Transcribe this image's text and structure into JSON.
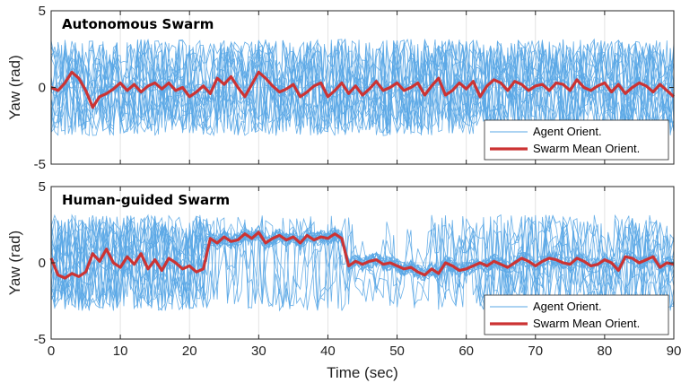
{
  "chart_data": [
    {
      "type": "line",
      "title": "Autonomous Swarm",
      "xlabel": "",
      "ylabel": "Yaw (rad)",
      "xlim": [
        0,
        90
      ],
      "ylim": [
        -5,
        5
      ],
      "xticks": [
        0,
        10,
        20,
        30,
        40,
        50,
        60,
        70,
        80,
        90
      ],
      "yticks": [
        -5,
        0,
        5
      ],
      "grid": true,
      "legend_position": "bottom-right",
      "agent_count": 20,
      "agent_range": [
        -3.14,
        3.14
      ],
      "agent_color": "#5aa7e6",
      "mean_color": "#cc3333",
      "series": [
        {
          "name": "Agent Orient.",
          "description": "individual agent yaw trajectories wrapping across ±π throughout"
        },
        {
          "name": "Swarm Mean Orient.",
          "x": [
            0,
            1,
            2,
            3,
            4,
            5,
            6,
            7,
            8,
            9,
            10,
            11,
            12,
            13,
            14,
            15,
            16,
            17,
            18,
            19,
            20,
            21,
            22,
            23,
            24,
            25,
            26,
            27,
            28,
            29,
            30,
            31,
            32,
            33,
            34,
            35,
            36,
            37,
            38,
            39,
            40,
            41,
            42,
            43,
            44,
            45,
            46,
            47,
            48,
            49,
            50,
            51,
            52,
            53,
            54,
            55,
            56,
            57,
            58,
            59,
            60,
            61,
            62,
            63,
            64,
            65,
            66,
            67,
            68,
            69,
            70,
            71,
            72,
            73,
            74,
            75,
            76,
            77,
            78,
            79,
            80,
            81,
            82,
            83,
            84,
            85,
            86,
            87,
            88,
            89,
            90
          ],
          "y": [
            0,
            -0.2,
            0.3,
            1.0,
            0.6,
            -0.2,
            -1.3,
            -0.6,
            -0.4,
            -0.1,
            0.3,
            -0.2,
            0.2,
            -0.3,
            0.1,
            0.3,
            -0.1,
            0.3,
            -0.2,
            0.0,
            -0.6,
            -0.3,
            0.1,
            -0.4,
            0.6,
            0.2,
            0.7,
            0.0,
            -0.6,
            0.2,
            1.0,
            0.6,
            0.1,
            -0.3,
            -0.1,
            0.2,
            -0.6,
            -0.3,
            0.1,
            0.3,
            -0.6,
            -0.2,
            0.3,
            -0.4,
            0.1,
            -0.5,
            -0.1,
            0.4,
            -0.2,
            0.0,
            0.3,
            -0.2,
            0.0,
            0.3,
            -0.5,
            0.1,
            0.6,
            -0.5,
            -0.2,
            0.3,
            -0.1,
            0.4,
            -0.6,
            0.1,
            0.5,
            0.3,
            -0.2,
            0.4,
            0.2,
            -0.2,
            0.1,
            0.2,
            -0.2,
            0.3,
            0.2,
            -0.2,
            0.5,
            0.0,
            -0.2,
            0.1,
            0.3,
            -0.3,
            0.2,
            -0.4,
            0.0,
            0.3,
            0.1,
            -0.3,
            0.2,
            -0.2,
            -0.6
          ]
        }
      ]
    },
    {
      "type": "line",
      "title": "Human-guided Swarm",
      "xlabel": "Time (sec)",
      "ylabel": "Yaw (rad)",
      "xlim": [
        0,
        90
      ],
      "ylim": [
        -5,
        5
      ],
      "xticks": [
        0,
        10,
        20,
        30,
        40,
        50,
        60,
        70,
        80,
        90
      ],
      "yticks": [
        -5,
        0,
        5
      ],
      "grid": true,
      "legend_position": "bottom-right",
      "agent_count": 20,
      "agent_range": [
        -3.14,
        3.14
      ],
      "agent_color": "#5aa7e6",
      "mean_color": "#cc3333",
      "series": [
        {
          "name": "Agent Orient.",
          "description": "agents scattered early, aligned around 1.5 rad from 23 to 43 s, then converging near 0"
        },
        {
          "name": "Swarm Mean Orient.",
          "x": [
            0,
            1,
            2,
            3,
            4,
            5,
            6,
            7,
            8,
            9,
            10,
            11,
            12,
            13,
            14,
            15,
            16,
            17,
            18,
            19,
            20,
            21,
            22,
            23,
            24,
            25,
            26,
            27,
            28,
            29,
            30,
            31,
            32,
            33,
            34,
            35,
            36,
            37,
            38,
            39,
            40,
            41,
            42,
            43,
            44,
            45,
            46,
            47,
            48,
            49,
            50,
            51,
            52,
            53,
            54,
            55,
            56,
            57,
            58,
            59,
            60,
            61,
            62,
            63,
            64,
            65,
            66,
            67,
            68,
            69,
            70,
            71,
            72,
            73,
            74,
            75,
            76,
            77,
            78,
            79,
            80,
            81,
            82,
            83,
            84,
            85,
            86,
            87,
            88,
            89,
            90
          ],
          "y": [
            0.3,
            -0.8,
            -1.0,
            -0.7,
            -0.9,
            -0.6,
            0.6,
            0.1,
            0.9,
            0.0,
            -0.3,
            0.4,
            -0.1,
            0.6,
            -0.4,
            0.2,
            -0.5,
            0.3,
            0.0,
            -0.4,
            -0.2,
            -0.6,
            -0.4,
            1.6,
            1.3,
            1.7,
            1.4,
            1.5,
            1.9,
            1.6,
            2.0,
            1.3,
            1.6,
            1.8,
            1.5,
            1.7,
            1.3,
            1.8,
            1.5,
            1.7,
            1.6,
            1.9,
            1.6,
            -0.2,
            0.1,
            -0.1,
            0.1,
            0.2,
            -0.1,
            0.0,
            -0.2,
            -0.4,
            -0.3,
            -0.6,
            -0.8,
            -0.4,
            -0.7,
            0.0,
            -0.2,
            -0.5,
            -0.4,
            -0.2,
            0.0,
            -0.2,
            0.1,
            -0.1,
            -0.3,
            0.0,
            0.3,
            0.1,
            -0.2,
            0.1,
            0.3,
            0.2,
            0.0,
            -0.1,
            0.3,
            0.1,
            -0.2,
            -0.1,
            0.2,
            0.0,
            -0.5,
            0.4,
            0.3,
            0.0,
            0.2,
            0.4,
            -0.3,
            0.0,
            -0.1
          ]
        }
      ]
    }
  ]
}
